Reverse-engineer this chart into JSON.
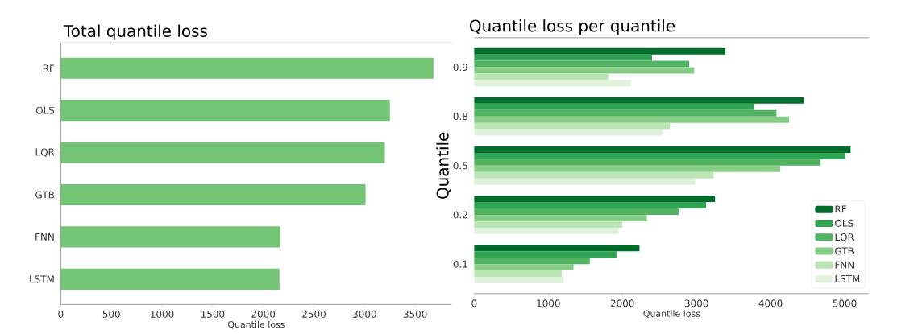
{
  "chart_data": [
    {
      "type": "bar",
      "orientation": "horizontal",
      "title": "Total quantile loss",
      "xlabel": "Quantile loss",
      "categories": [
        "RF",
        "OLS",
        "LQR",
        "GTB",
        "FNN",
        "LSTM"
      ],
      "values": [
        3680,
        3250,
        3200,
        3010,
        2170,
        2160
      ],
      "color": "#74c476",
      "xlim": [
        0,
        3860
      ],
      "xticks": [
        0,
        500,
        1000,
        1500,
        2000,
        2500,
        3000,
        3500
      ]
    },
    {
      "type": "bar",
      "orientation": "horizontal",
      "title": "Quantile loss per quantile",
      "xlabel": "Quantile loss",
      "ylabel": "Quantile",
      "categories": [
        "0.9",
        "0.8",
        "0.5",
        "0.2",
        "0.1"
      ],
      "series": [
        {
          "name": "RF",
          "color": "#006d2c",
          "values": [
            3390,
            4450,
            5080,
            3250,
            2230
          ]
        },
        {
          "name": "OLS",
          "color": "#31a354",
          "values": [
            2400,
            3780,
            5010,
            3130,
            1920
          ]
        },
        {
          "name": "LQR",
          "color": "#52b363",
          "values": [
            2900,
            4080,
            4670,
            2760,
            1560
          ]
        },
        {
          "name": "GTB",
          "color": "#86cc86",
          "values": [
            2970,
            4250,
            4130,
            2330,
            1340
          ]
        },
        {
          "name": "FNN",
          "color": "#bae4b3",
          "values": [
            1810,
            2640,
            3230,
            2000,
            1180
          ]
        },
        {
          "name": "LSTM",
          "color": "#dff1da",
          "values": [
            2120,
            2540,
            2980,
            1950,
            1210
          ]
        }
      ],
      "legend": "bottom right",
      "xlim": [
        0,
        5330
      ],
      "xticks": [
        0,
        1000,
        2000,
        3000,
        4000,
        5000
      ]
    }
  ]
}
